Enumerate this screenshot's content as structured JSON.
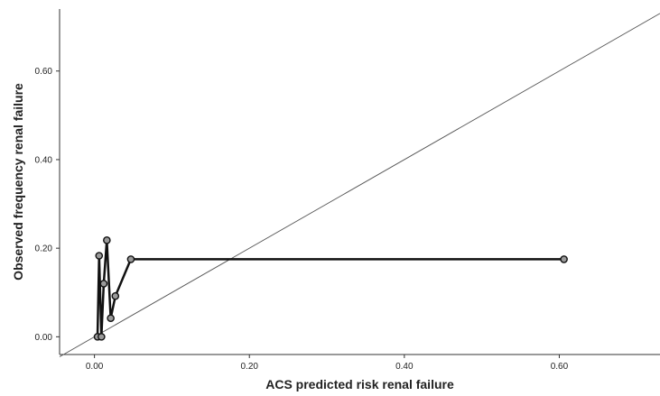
{
  "chart_data": {
    "type": "line",
    "title": "",
    "xlabel": "ACS predicted risk renal failure",
    "ylabel": "Observed frequency renal failure",
    "xlim": [
      -0.045,
      0.73
    ],
    "ylim": [
      -0.04,
      0.74
    ],
    "x_ticks": [
      0.0,
      0.2,
      0.4,
      0.6
    ],
    "x_tick_labels": [
      "0.00",
      "0.20",
      "0.40",
      "0.60"
    ],
    "y_ticks": [
      0.0,
      0.2,
      0.4,
      0.6
    ],
    "y_tick_labels": [
      "0.00",
      "0.20",
      "0.40",
      "0.60"
    ],
    "grid": false,
    "legend": "none",
    "reference_line": {
      "type": "identity",
      "x": [
        -0.045,
        0.73
      ],
      "y": [
        -0.045,
        0.73
      ],
      "color": "#555555"
    },
    "series": [
      {
        "color": "#111111",
        "marker": "circle",
        "points": [
          {
            "x": 0.004,
            "y": 0.0
          },
          {
            "x": 0.006,
            "y": 0.183
          },
          {
            "x": 0.009,
            "y": 0.0
          },
          {
            "x": 0.012,
            "y": 0.12
          },
          {
            "x": 0.016,
            "y": 0.218
          },
          {
            "x": 0.021,
            "y": 0.042
          },
          {
            "x": 0.027,
            "y": 0.092
          },
          {
            "x": 0.047,
            "y": 0.175
          },
          {
            "x": 0.606,
            "y": 0.175
          }
        ]
      }
    ]
  }
}
